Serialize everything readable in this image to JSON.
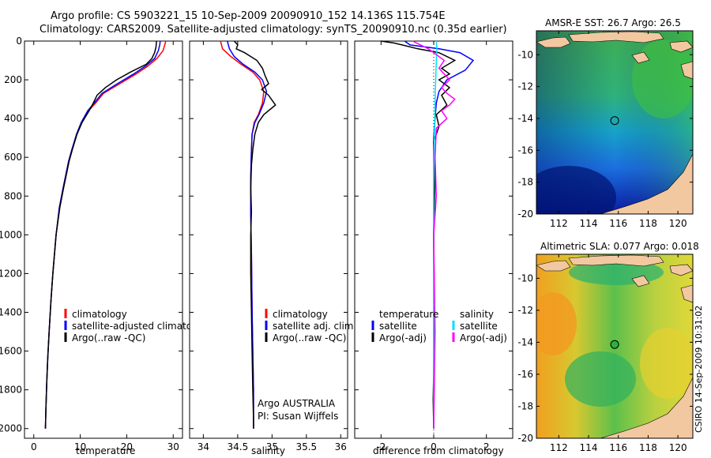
{
  "header": {
    "line1": "Argo profile: CS 5903221_15 10-Sep-2009 20090910_152 14.136S 115.754E",
    "line2": "Climatology: CARS2009. Satellite-adjusted climatology: synTS_20090910.nc (0.35d earlier)"
  },
  "credit": "CSIRO 14-Sep-2009 10:31:02",
  "colors": {
    "climatology": "#ff0000",
    "satellite": "#0000ff",
    "argo": "#000000",
    "argo_sal": "#ff00ff",
    "sat_sal": "#00e0ff"
  },
  "chart_data": [
    {
      "type": "line",
      "id": "temperature",
      "xlabel": "temperature",
      "ylabel": "",
      "xlim": [
        -2,
        32
      ],
      "ylim": [
        2050,
        0
      ],
      "y_inverted": true,
      "xticks": [
        0,
        10,
        20,
        30
      ],
      "yticks": [
        0,
        200,
        400,
        600,
        800,
        1000,
        1200,
        1400,
        1600,
        1800,
        2000
      ],
      "series": [
        {
          "name": "climatology",
          "color": "#ff0000",
          "x": [
            28.4,
            28.2,
            27.8,
            26.5,
            24.5,
            22.0,
            18.5,
            15.0,
            13.3,
            11.8,
            10.3,
            9.3,
            8.2,
            7.5,
            6.3,
            5.5,
            4.8,
            4.1,
            3.7,
            3.3,
            3.0,
            2.8,
            2.6,
            2.5
          ],
          "y": [
            0,
            20,
            50,
            90,
            130,
            170,
            220,
            270,
            320,
            360,
            420,
            480,
            560,
            620,
            760,
            860,
            1000,
            1200,
            1340,
            1500,
            1640,
            1760,
            1900,
            2000
          ]
        },
        {
          "name": "satellite-adjusted climatology",
          "color": "#0000ff",
          "x": [
            27.2,
            27.1,
            26.8,
            26.0,
            24.0,
            21.5,
            18.0,
            14.7,
            13.0,
            11.6,
            10.2,
            9.2,
            8.2,
            7.5,
            6.3,
            5.5,
            4.8,
            4.1,
            3.7,
            3.3,
            3.0,
            2.8,
            2.6,
            2.5
          ],
          "y": [
            0,
            20,
            50,
            90,
            130,
            170,
            220,
            270,
            320,
            360,
            420,
            480,
            560,
            620,
            760,
            860,
            1000,
            1200,
            1340,
            1500,
            1640,
            1760,
            1900,
            2000
          ]
        },
        {
          "name": "Argo(..raw -QC)",
          "color": "#000000",
          "x": [
            26.4,
            26.3,
            26.0,
            25.4,
            24.2,
            20.8,
            17.8,
            15.4,
            13.6,
            12.8,
            11.9,
            10.4,
            9.3,
            8.3,
            7.6,
            6.4,
            5.6,
            4.8,
            4.1,
            3.7,
            3.3,
            3.0,
            2.8,
            2.6,
            2.5
          ],
          "y": [
            0,
            30,
            60,
            90,
            120,
            160,
            200,
            240,
            280,
            320,
            360,
            420,
            480,
            560,
            620,
            760,
            860,
            1000,
            1200,
            1340,
            1500,
            1640,
            1760,
            1900,
            2000
          ]
        }
      ],
      "legend": [
        "climatology",
        "satellite-adjusted climatology",
        "Argo(..raw -QC)"
      ],
      "legend_position": "bottom-center"
    },
    {
      "type": "line",
      "id": "salinity",
      "xlabel": "salinity",
      "ylabel": "",
      "xlim": [
        33.8,
        36.1
      ],
      "ylim": [
        2050,
        0
      ],
      "y_inverted": true,
      "xticks": [
        34,
        34.5,
        35,
        35.5,
        36
      ],
      "xticklabels": [
        "34",
        "34.5",
        "35",
        "35.5",
        "36"
      ],
      "series": [
        {
          "name": "climatology",
          "color": "#ff0000",
          "x": [
            34.25,
            34.28,
            34.4,
            34.55,
            34.72,
            34.82,
            34.88,
            34.86,
            34.8,
            34.74,
            34.71,
            34.7,
            34.69,
            34.69,
            34.7,
            34.71,
            34.72,
            34.73,
            34.73
          ],
          "y": [
            0,
            40,
            80,
            120,
            160,
            200,
            260,
            320,
            380,
            420,
            480,
            560,
            700,
            900,
            1100,
            1400,
            1600,
            1800,
            2000
          ]
        },
        {
          "name": "satellite adj. clim.",
          "color": "#0000ff",
          "x": [
            34.35,
            34.38,
            34.45,
            34.58,
            34.75,
            34.86,
            34.92,
            34.88,
            34.81,
            34.75,
            34.71,
            34.7,
            34.69,
            34.69,
            34.7,
            34.71,
            34.72,
            34.73,
            34.73
          ],
          "y": [
            0,
            40,
            80,
            120,
            160,
            200,
            260,
            320,
            380,
            420,
            480,
            560,
            700,
            900,
            1100,
            1400,
            1600,
            1800,
            2000
          ]
        },
        {
          "name": "Argo(..raw -QC)",
          "color": "#000000",
          "x": [
            34.45,
            34.5,
            34.48,
            34.6,
            34.78,
            34.86,
            34.9,
            34.95,
            34.85,
            34.95,
            35.05,
            34.88,
            34.8,
            34.75,
            34.72,
            34.7,
            34.69,
            34.7,
            34.69,
            34.69,
            34.7,
            34.71,
            34.72,
            34.73,
            34.73
          ],
          "y": [
            0,
            20,
            40,
            60,
            100,
            140,
            180,
            220,
            250,
            280,
            330,
            380,
            420,
            480,
            560,
            640,
            760,
            880,
            1000,
            1200,
            1400,
            1600,
            1800,
            1950,
            2000
          ]
        }
      ],
      "legend": [
        "climatology",
        "satellite adj. clim.",
        "Argo(..raw -QC)"
      ],
      "legend_position": "bottom-center",
      "annotation": [
        "Argo AUSTRALIA",
        "PI: Susan Wijffels"
      ]
    },
    {
      "type": "line",
      "id": "difference",
      "xlabel": "difference from climatology",
      "ylabel": "",
      "xlim": [
        -3,
        3
      ],
      "ylim": [
        2050,
        0
      ],
      "y_inverted": true,
      "xticks": [
        -2,
        0,
        2
      ],
      "series": [
        {
          "name": "temperature satellite",
          "color": "#0000ff",
          "x": [
            -1.1,
            -0.9,
            0.2,
            1.0,
            1.5,
            1.2,
            0.5,
            0.2,
            0.1,
            0.05,
            0.0,
            0.0,
            0.0,
            0.0
          ],
          "y": [
            0,
            20,
            40,
            60,
            100,
            150,
            200,
            260,
            320,
            400,
            500,
            700,
            1000,
            2000
          ]
        },
        {
          "name": "temperature Argo(-adj)",
          "color": "#000000",
          "x": [
            -2.0,
            -1.5,
            -1.2,
            -0.6,
            0.2,
            0.8,
            0.3,
            0.6,
            0.2,
            0.6,
            0.3,
            0.5,
            0.1,
            0.2,
            0.0,
            0.05,
            0.0,
            0.02,
            0.0,
            -0.02,
            0.0
          ],
          "y": [
            0,
            10,
            20,
            40,
            60,
            100,
            140,
            170,
            200,
            240,
            280,
            330,
            380,
            440,
            520,
            700,
            1000,
            1400,
            1700,
            1850,
            2000
          ]
        },
        {
          "name": "salinity satellite",
          "color": "#00e0ff",
          "x": [
            0.1,
            0.12,
            0.1,
            0.08,
            0.06,
            0.05,
            0.04,
            0.02,
            0.0,
            0.0,
            0.0,
            0.0
          ],
          "y": [
            0,
            40,
            100,
            180,
            260,
            340,
            420,
            520,
            700,
            1000,
            1500,
            2000
          ]
        },
        {
          "name": "salinity Argo(-adj)",
          "color": "#ff00ff",
          "x": [
            -0.8,
            -0.5,
            -0.2,
            0.0,
            0.4,
            0.2,
            0.6,
            0.3,
            0.5,
            0.8,
            0.6,
            0.3,
            0.5,
            0.1,
            0.05,
            0.1,
            0.0,
            0.05,
            0.0
          ],
          "y": [
            0,
            20,
            40,
            60,
            100,
            140,
            200,
            240,
            270,
            300,
            330,
            360,
            400,
            450,
            600,
            800,
            1000,
            1500,
            2000
          ]
        }
      ],
      "legend_temperature": [
        "temperature",
        "satellite",
        "Argo(-adj)"
      ],
      "legend_salinity": [
        "salinity",
        "satellite",
        "Argo(-adj)"
      ],
      "legend_position": "bottom-center"
    },
    {
      "type": "heatmap",
      "id": "sst-map",
      "title": "AMSR-E SST: 26.7  Argo: 26.5",
      "xlim": [
        110.5,
        121
      ],
      "ylim": [
        -20,
        -8.5
      ],
      "xticks": [
        112,
        114,
        116,
        118,
        120
      ],
      "yticks": [
        -10,
        -12,
        -14,
        -16,
        -18,
        -20
      ],
      "argo_position": {
        "lon": 115.754,
        "lat": -14.136
      }
    },
    {
      "type": "heatmap",
      "id": "sla-map",
      "title": "Altimetric SLA: 0.077  Argo: 0.018",
      "xlim": [
        110.5,
        121
      ],
      "ylim": [
        -20,
        -8.5
      ],
      "xticks": [
        112,
        114,
        116,
        118,
        120
      ],
      "yticks": [
        -10,
        -12,
        -14,
        -16,
        -18,
        -20
      ],
      "argo_position": {
        "lon": 115.754,
        "lat": -14.136
      }
    }
  ]
}
